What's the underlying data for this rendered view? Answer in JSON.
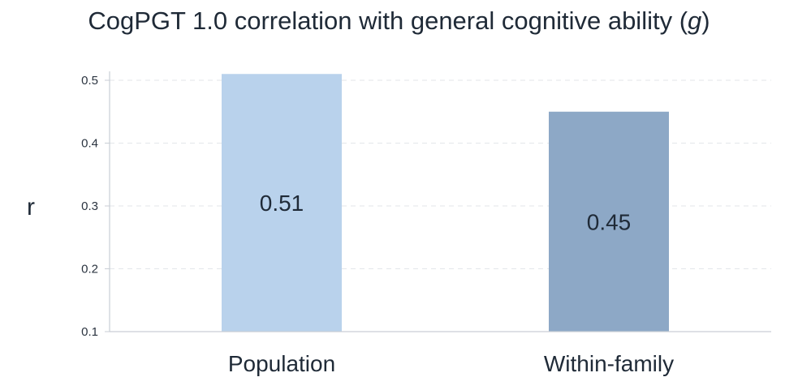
{
  "chart_data": {
    "type": "bar",
    "title_main": "CogPGT 1.0 correlation with general cognitive ability (",
    "title_italic": "g",
    "title_end": ")",
    "xlabel": "",
    "ylabel": "r",
    "categories": [
      "Population",
      "Within-family"
    ],
    "values": [
      0.51,
      0.45
    ],
    "value_labels": [
      "0.51",
      "0.45"
    ],
    "colors": [
      "#b9d2ec",
      "#8da8c6"
    ],
    "ylim": [
      0.1,
      0.51
    ],
    "yticks": [
      0.1,
      0.2,
      0.3,
      0.4,
      0.5
    ],
    "ytick_labels": [
      "0.1",
      "0.2",
      "0.3",
      "0.4",
      "0.5"
    ],
    "grid": true
  }
}
